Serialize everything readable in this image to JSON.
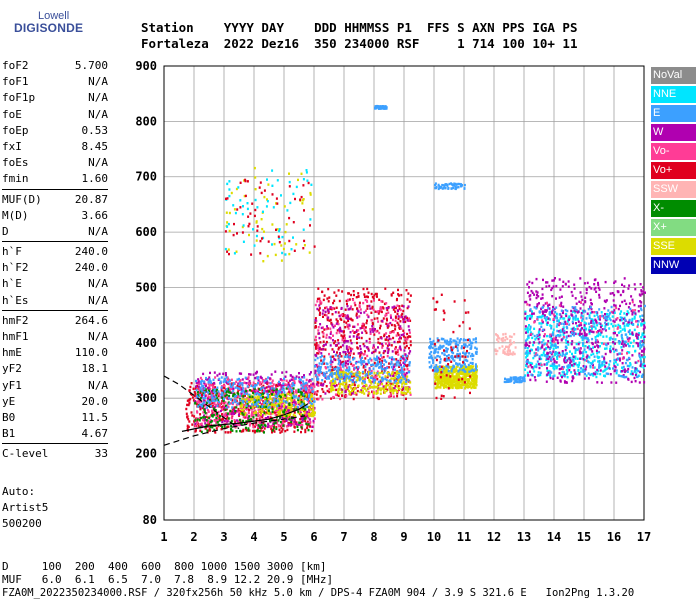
{
  "logo": {
    "top": "Lowell",
    "bottom": "DIGISONDE"
  },
  "header": {
    "row1": "Station    YYYY DAY    DDD HHMMSS P1  FFS S AXN PPS IGA PS",
    "row2": "Fortaleza  2022 Dez16  350 234000 RSF     1 714 100 10+ 11"
  },
  "params": [
    [
      {
        "k": "foF2",
        "v": "5.700"
      },
      {
        "k": "foF1",
        "v": "N/A"
      },
      {
        "k": "foF1p",
        "v": "N/A"
      },
      {
        "k": "foE",
        "v": "N/A"
      },
      {
        "k": "foEp",
        "v": "0.53"
      },
      {
        "k": "fxI",
        "v": "8.45"
      },
      {
        "k": "foEs",
        "v": "N/A"
      },
      {
        "k": "fmin",
        "v": "1.60"
      }
    ],
    [
      {
        "k": "MUF(D)",
        "v": "20.87"
      },
      {
        "k": "M(D)",
        "v": "3.66"
      },
      {
        "k": "D",
        "v": "N/A"
      }
    ],
    [
      {
        "k": "h`F",
        "v": "240.0"
      },
      {
        "k": "h`F2",
        "v": "240.0"
      },
      {
        "k": "h`E",
        "v": "N/A"
      },
      {
        "k": "h`Es",
        "v": "N/A"
      }
    ],
    [
      {
        "k": "hmF2",
        "v": "264.6"
      },
      {
        "k": "hmF1",
        "v": "N/A"
      },
      {
        "k": "hmE",
        "v": "110.0"
      },
      {
        "k": "yF2",
        "v": "18.1"
      },
      {
        "k": "yF1",
        "v": "N/A"
      },
      {
        "k": "yE",
        "v": "20.0"
      },
      {
        "k": "B0",
        "v": "11.5"
      },
      {
        "k": "B1",
        "v": "4.67"
      }
    ],
    [
      {
        "k": "C-level",
        "v": "33"
      }
    ]
  ],
  "auto": {
    "l1": "Auto:",
    "l2": "Artist5",
    "l3": "500200"
  },
  "legend": [
    {
      "name": "NoVal",
      "color": "#8c8c8c",
      "text": "#ffffff"
    },
    {
      "name": "NNE",
      "color": "#00e5ff",
      "text": "#ffffff"
    },
    {
      "name": "E",
      "color": "#3ca0ff",
      "text": "#ffffff"
    },
    {
      "name": "W",
      "color": "#b000b0",
      "text": "#ffffff"
    },
    {
      "name": "Vo-",
      "color": "#ff3c96",
      "text": "#ffffff"
    },
    {
      "name": "Vo+",
      "color": "#e0001e",
      "text": "#ffffff"
    },
    {
      "name": "SSW",
      "color": "#ffb4b4",
      "text": "#ffffff"
    },
    {
      "name": "X-",
      "color": "#008c00",
      "text": "#ffffff"
    },
    {
      "name": "X+",
      "color": "#82dc82",
      "text": "#ffffff"
    },
    {
      "name": "SSE",
      "color": "#dcdc00",
      "text": "#ffffff"
    },
    {
      "name": "NNW",
      "color": "#0000b4",
      "text": "#ffffff"
    }
  ],
  "footer": {
    "row1": "D     100  200  400  600  800 1000 1500 3000 [km]",
    "row2": "MUF   6.0  6.1  6.5  7.0  7.8  8.9 12.2 20.9 [MHz]",
    "row3": "FZA0M_2022350234000.RSF / 320fx256h 50 kHz 5.0 km / DPS-4 FZA0M 904 / 3.9 S 321.6 E   Ion2Png 1.3.20"
  },
  "chart_data": {
    "type": "scatter",
    "title": "",
    "xlabel": "",
    "ylabel": "",
    "xlim": [
      1,
      17
    ],
    "ylim": [
      80,
      900
    ],
    "x_ticks": [
      1,
      2,
      3,
      4,
      5,
      6,
      7,
      8,
      9,
      10,
      11,
      12,
      13,
      14,
      15,
      16,
      17
    ],
    "y_ticks": [
      80,
      200,
      300,
      400,
      500,
      600,
      700,
      800,
      900
    ],
    "grid": true,
    "legend_position": "right",
    "echo_clusters": [
      {
        "series": "Vo+",
        "x": [
          1.7,
          6.0
        ],
        "y": [
          240,
          330
        ],
        "density": "high"
      },
      {
        "series": "Vo-",
        "x": [
          2.0,
          6.0
        ],
        "y": [
          250,
          340
        ],
        "density": "high"
      },
      {
        "series": "W",
        "x": [
          2.0,
          6.0
        ],
        "y": [
          250,
          350
        ],
        "density": "medium"
      },
      {
        "series": "SSE",
        "x": [
          3.5,
          6.0
        ],
        "y": [
          270,
          310
        ],
        "density": "medium"
      },
      {
        "series": "X-",
        "x": [
          2.0,
          5.8
        ],
        "y": [
          240,
          320
        ],
        "density": "medium"
      },
      {
        "series": "E",
        "x": [
          2.0,
          6.0
        ],
        "y": [
          285,
          340
        ],
        "density": "medium"
      },
      {
        "series": "Vo+",
        "x": [
          6.0,
          9.2
        ],
        "y": [
          300,
          500
        ],
        "density": "high"
      },
      {
        "series": "Vo-",
        "x": [
          6.0,
          9.2
        ],
        "y": [
          300,
          480
        ],
        "density": "medium"
      },
      {
        "series": "W",
        "x": [
          6.0,
          9.2
        ],
        "y": [
          310,
          470
        ],
        "density": "medium"
      },
      {
        "series": "SSE",
        "x": [
          6.5,
          9.2
        ],
        "y": [
          310,
          350
        ],
        "density": "medium"
      },
      {
        "series": "E",
        "x": [
          6.0,
          9.2
        ],
        "y": [
          330,
          380
        ],
        "density": "medium"
      },
      {
        "series": "SSE",
        "x": [
          10.0,
          11.4
        ],
        "y": [
          320,
          360
        ],
        "density": "high"
      },
      {
        "series": "E",
        "x": [
          9.8,
          11.4
        ],
        "y": [
          350,
          410
        ],
        "density": "medium"
      },
      {
        "series": "Vo+",
        "x": [
          9.9,
          11.2
        ],
        "y": [
          300,
          490
        ],
        "density": "low"
      },
      {
        "series": "NNE",
        "x": [
          13.0,
          17.0
        ],
        "y": [
          340,
          460
        ],
        "density": "high"
      },
      {
        "series": "W",
        "x": [
          13.0,
          17.0
        ],
        "y": [
          330,
          520
        ],
        "density": "high"
      },
      {
        "series": "Vo-",
        "x": [
          13.0,
          17.0
        ],
        "y": [
          350,
          480
        ],
        "density": "low"
      },
      {
        "series": "E",
        "x": [
          13.0,
          17.0
        ],
        "y": [
          340,
          470
        ],
        "density": "medium"
      },
      {
        "series": "SSE",
        "x": [
          3.0,
          6.0
        ],
        "y": [
          540,
          720
        ],
        "density": "low"
      },
      {
        "series": "NNE",
        "x": [
          3.0,
          6.0
        ],
        "y": [
          560,
          720
        ],
        "density": "low"
      },
      {
        "series": "Vo+",
        "x": [
          3.0,
          6.0
        ],
        "y": [
          560,
          700
        ],
        "density": "low"
      },
      {
        "series": "E",
        "x": [
          8.0,
          8.4
        ],
        "y": [
          825,
          830
        ],
        "density": "low"
      },
      {
        "series": "E",
        "x": [
          10.0,
          11.0
        ],
        "y": [
          680,
          690
        ],
        "density": "low"
      },
      {
        "series": "SSW",
        "x": [
          12.0,
          12.7
        ],
        "y": [
          380,
          420
        ],
        "density": "low"
      },
      {
        "series": "E",
        "x": [
          12.3,
          13.0
        ],
        "y": [
          330,
          340
        ],
        "density": "low"
      }
    ],
    "trace_lines": [
      {
        "name": "virtual-height-trace",
        "style": "solid",
        "x": [
          1.6,
          2.5,
          3.5,
          4.5,
          5.0,
          5.5,
          5.8
        ],
        "y": [
          240,
          250,
          255,
          262,
          270,
          280,
          290
        ]
      },
      {
        "name": "profile-upper",
        "style": "dashed",
        "x": [
          1.0,
          1.5,
          2.0,
          2.5,
          3.0,
          3.5
        ],
        "y": [
          340,
          325,
          305,
          285,
          265,
          245
        ]
      },
      {
        "name": "profile-lower",
        "style": "dashed",
        "x": [
          1.0,
          2.0,
          3.0,
          4.0,
          5.0,
          5.7
        ],
        "y": [
          215,
          232,
          245,
          255,
          262,
          268
        ]
      }
    ]
  }
}
